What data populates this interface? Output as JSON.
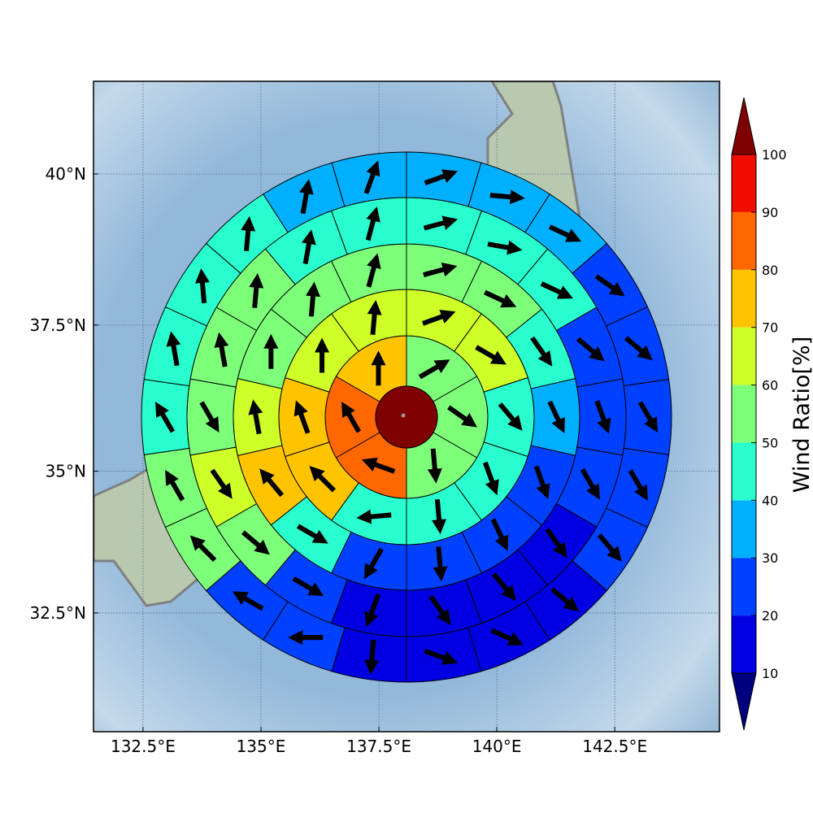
{
  "chart_data": {
    "type": "rings",
    "xticks": [
      {
        "value": 132.5,
        "label": "132.5°E"
      },
      {
        "value": 135,
        "label": "135°E"
      },
      {
        "value": 137.5,
        "label": "137.5°E"
      },
      {
        "value": 140,
        "label": "140°E"
      },
      {
        "value": 142.5,
        "label": "142.5°E"
      }
    ],
    "yticks": [
      {
        "value": 32.5,
        "label": "32.5°N"
      },
      {
        "value": 35,
        "label": "35°N"
      },
      {
        "value": 37.5,
        "label": "37.5°N"
      },
      {
        "value": 40,
        "label": "40°N"
      }
    ],
    "xlim": [
      131.45,
      144.72
    ],
    "ylim": [
      30.35,
      41.49
    ],
    "grid": true,
    "colorbar": {
      "label": "Wind Ratio[%]",
      "ticks": [
        10,
        20,
        30,
        40,
        50,
        60,
        70,
        80,
        90,
        100
      ],
      "colors": [
        "#0000e0",
        "#0040ff",
        "#00b0ff",
        "#29ffce",
        "#7dff7a",
        "#ceff29",
        "#ffc400",
        "#ff6800",
        "#f00d00"
      ],
      "under_color": "#00007f",
      "over_color": "#7f0000"
    },
    "center": {
      "value": 105
    },
    "rings": [
      {
        "values": [
          55,
          55,
          55,
          85,
          85,
          75
        ],
        "directions": [
          60,
          125,
          175,
          290,
          330,
          0
        ]
      },
      {
        "values": [
          65,
          65,
          45,
          45,
          45,
          45,
          75,
          75,
          65,
          65
        ],
        "directions": [
          70,
          120,
          140,
          160,
          175,
          265,
          315,
          340,
          0,
          5
        ]
      },
      {
        "values": [
          55,
          55,
          45,
          35,
          25,
          25,
          25,
          25,
          45,
          75,
          65,
          55,
          55,
          55
        ],
        "directions": [
          75,
          115,
          145,
          155,
          160,
          155,
          175,
          210,
          120,
          320,
          350,
          0,
          5,
          15
        ]
      },
      {
        "values": [
          45,
          45,
          45,
          25,
          25,
          25,
          15,
          15,
          15,
          15,
          25,
          55,
          65,
          55,
          55,
          55,
          45,
          45
        ],
        "directions": [
          75,
          100,
          115,
          130,
          160,
          150,
          145,
          140,
          145,
          200,
          120,
          130,
          145,
          150,
          350,
          5,
          10,
          15
        ]
      },
      {
        "values": [
          35,
          35,
          35,
          25,
          25,
          25,
          25,
          25,
          15,
          15,
          15,
          15,
          25,
          25,
          55,
          55,
          45,
          45,
          45,
          45,
          35,
          35
        ],
        "directions": [
          70,
          95,
          115,
          125,
          130,
          150,
          150,
          140,
          130,
          115,
          110,
          185,
          270,
          300,
          315,
          330,
          330,
          350,
          355,
          5,
          10,
          20
        ]
      }
    ]
  }
}
